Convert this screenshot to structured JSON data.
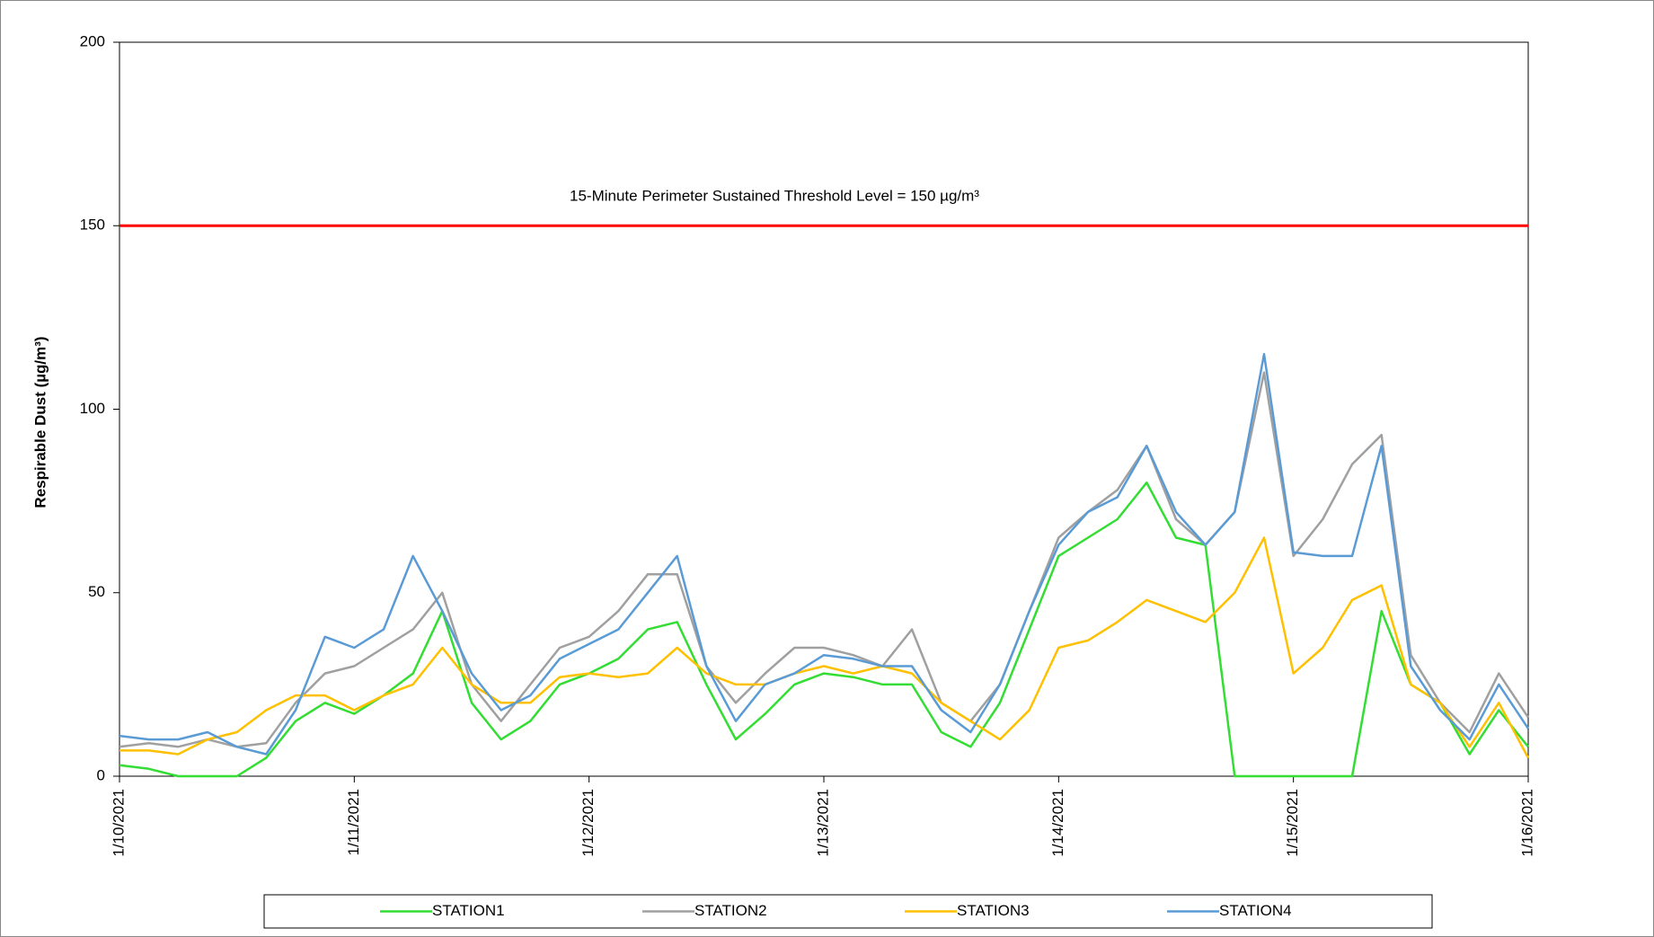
{
  "chart_data": {
    "type": "line",
    "y_label": "Respirable Dust (µg/m³)",
    "threshold": {
      "value": 150,
      "color": "#ff0000",
      "label": "15-Minute Perimeter Sustained Threshold Level = 150 µg/m³"
    },
    "x": [
      "2021-01-10T00:00",
      "2021-01-10T03:00",
      "2021-01-10T06:00",
      "2021-01-10T09:00",
      "2021-01-10T12:00",
      "2021-01-10T15:00",
      "2021-01-10T18:00",
      "2021-01-10T21:00",
      "2021-01-11T00:00",
      "2021-01-11T03:00",
      "2021-01-11T06:00",
      "2021-01-11T09:00",
      "2021-01-11T12:00",
      "2021-01-11T15:00",
      "2021-01-11T18:00",
      "2021-01-11T21:00",
      "2021-01-12T00:00",
      "2021-01-12T03:00",
      "2021-01-12T06:00",
      "2021-01-12T09:00",
      "2021-01-12T12:00",
      "2021-01-12T15:00",
      "2021-01-12T18:00",
      "2021-01-12T21:00",
      "2021-01-13T00:00",
      "2021-01-13T03:00",
      "2021-01-13T06:00",
      "2021-01-13T09:00",
      "2021-01-13T12:00",
      "2021-01-13T15:00",
      "2021-01-13T18:00",
      "2021-01-13T21:00",
      "2021-01-14T00:00",
      "2021-01-14T03:00",
      "2021-01-14T06:00",
      "2021-01-14T09:00",
      "2021-01-14T12:00",
      "2021-01-14T15:00",
      "2021-01-14T18:00",
      "2021-01-14T21:00",
      "2021-01-15T00:00",
      "2021-01-15T03:00",
      "2021-01-15T06:00",
      "2021-01-15T09:00",
      "2021-01-15T12:00",
      "2021-01-15T15:00",
      "2021-01-15T18:00",
      "2021-01-15T21:00",
      "2021-01-16T00:00"
    ],
    "series": [
      {
        "name": "STATION1",
        "color": "#33dd33",
        "values": [
          3,
          2,
          0,
          0,
          0,
          5,
          15,
          20,
          17,
          22,
          28,
          45,
          20,
          10,
          15,
          25,
          28,
          32,
          40,
          42,
          25,
          10,
          17,
          25,
          28,
          27,
          25,
          25,
          12,
          8,
          20,
          40,
          60,
          65,
          70,
          80,
          65,
          63,
          0,
          0,
          0,
          0,
          0,
          45,
          25,
          20,
          6,
          18,
          8
        ]
      },
      {
        "name": "STATION2",
        "color": "#a0a0a0",
        "values": [
          8,
          9,
          8,
          10,
          8,
          9,
          20,
          28,
          30,
          35,
          40,
          50,
          25,
          15,
          25,
          35,
          38,
          45,
          55,
          55,
          30,
          20,
          28,
          35,
          35,
          33,
          30,
          40,
          20,
          15,
          25,
          45,
          65,
          72,
          78,
          90,
          70,
          63,
          72,
          110,
          60,
          70,
          85,
          93,
          33,
          20,
          12,
          28,
          16
        ]
      },
      {
        "name": "STATION3",
        "color": "#ffc000",
        "values": [
          7,
          7,
          6,
          10,
          12,
          18,
          22,
          22,
          18,
          22,
          25,
          35,
          25,
          20,
          20,
          27,
          28,
          27,
          28,
          35,
          28,
          25,
          25,
          28,
          30,
          28,
          30,
          28,
          20,
          15,
          10,
          18,
          35,
          37,
          42,
          48,
          45,
          42,
          50,
          65,
          28,
          35,
          48,
          52,
          25,
          20,
          8,
          20,
          5
        ]
      },
      {
        "name": "STATION4",
        "color": "#5b9bd5",
        "values": [
          11,
          10,
          10,
          12,
          8,
          6,
          18,
          38,
          35,
          40,
          60,
          45,
          28,
          18,
          22,
          32,
          36,
          40,
          50,
          60,
          30,
          15,
          25,
          28,
          33,
          32,
          30,
          30,
          18,
          12,
          25,
          45,
          63,
          72,
          76,
          90,
          72,
          63,
          72,
          115,
          61,
          60,
          60,
          90,
          30,
          18,
          10,
          25,
          13
        ]
      }
    ],
    "xlim": [
      "2021-01-10T00:00",
      "2021-01-16T00:00"
    ],
    "xticks": [
      {
        "value": "2021-01-10T00:00",
        "label": "1/10/2021"
      },
      {
        "value": "2021-01-11T00:00",
        "label": "1/11/2021"
      },
      {
        "value": "2021-01-12T00:00",
        "label": "1/12/2021"
      },
      {
        "value": "2021-01-13T00:00",
        "label": "1/13/2021"
      },
      {
        "value": "2021-01-14T00:00",
        "label": "1/14/2021"
      },
      {
        "value": "2021-01-15T00:00",
        "label": "1/15/2021"
      },
      {
        "value": "2021-01-16T00:00",
        "label": "1/16/2021"
      }
    ],
    "ylim": [
      0,
      200
    ],
    "yticks": [
      0,
      50,
      100,
      150,
      200
    ],
    "legend": "bottom"
  }
}
